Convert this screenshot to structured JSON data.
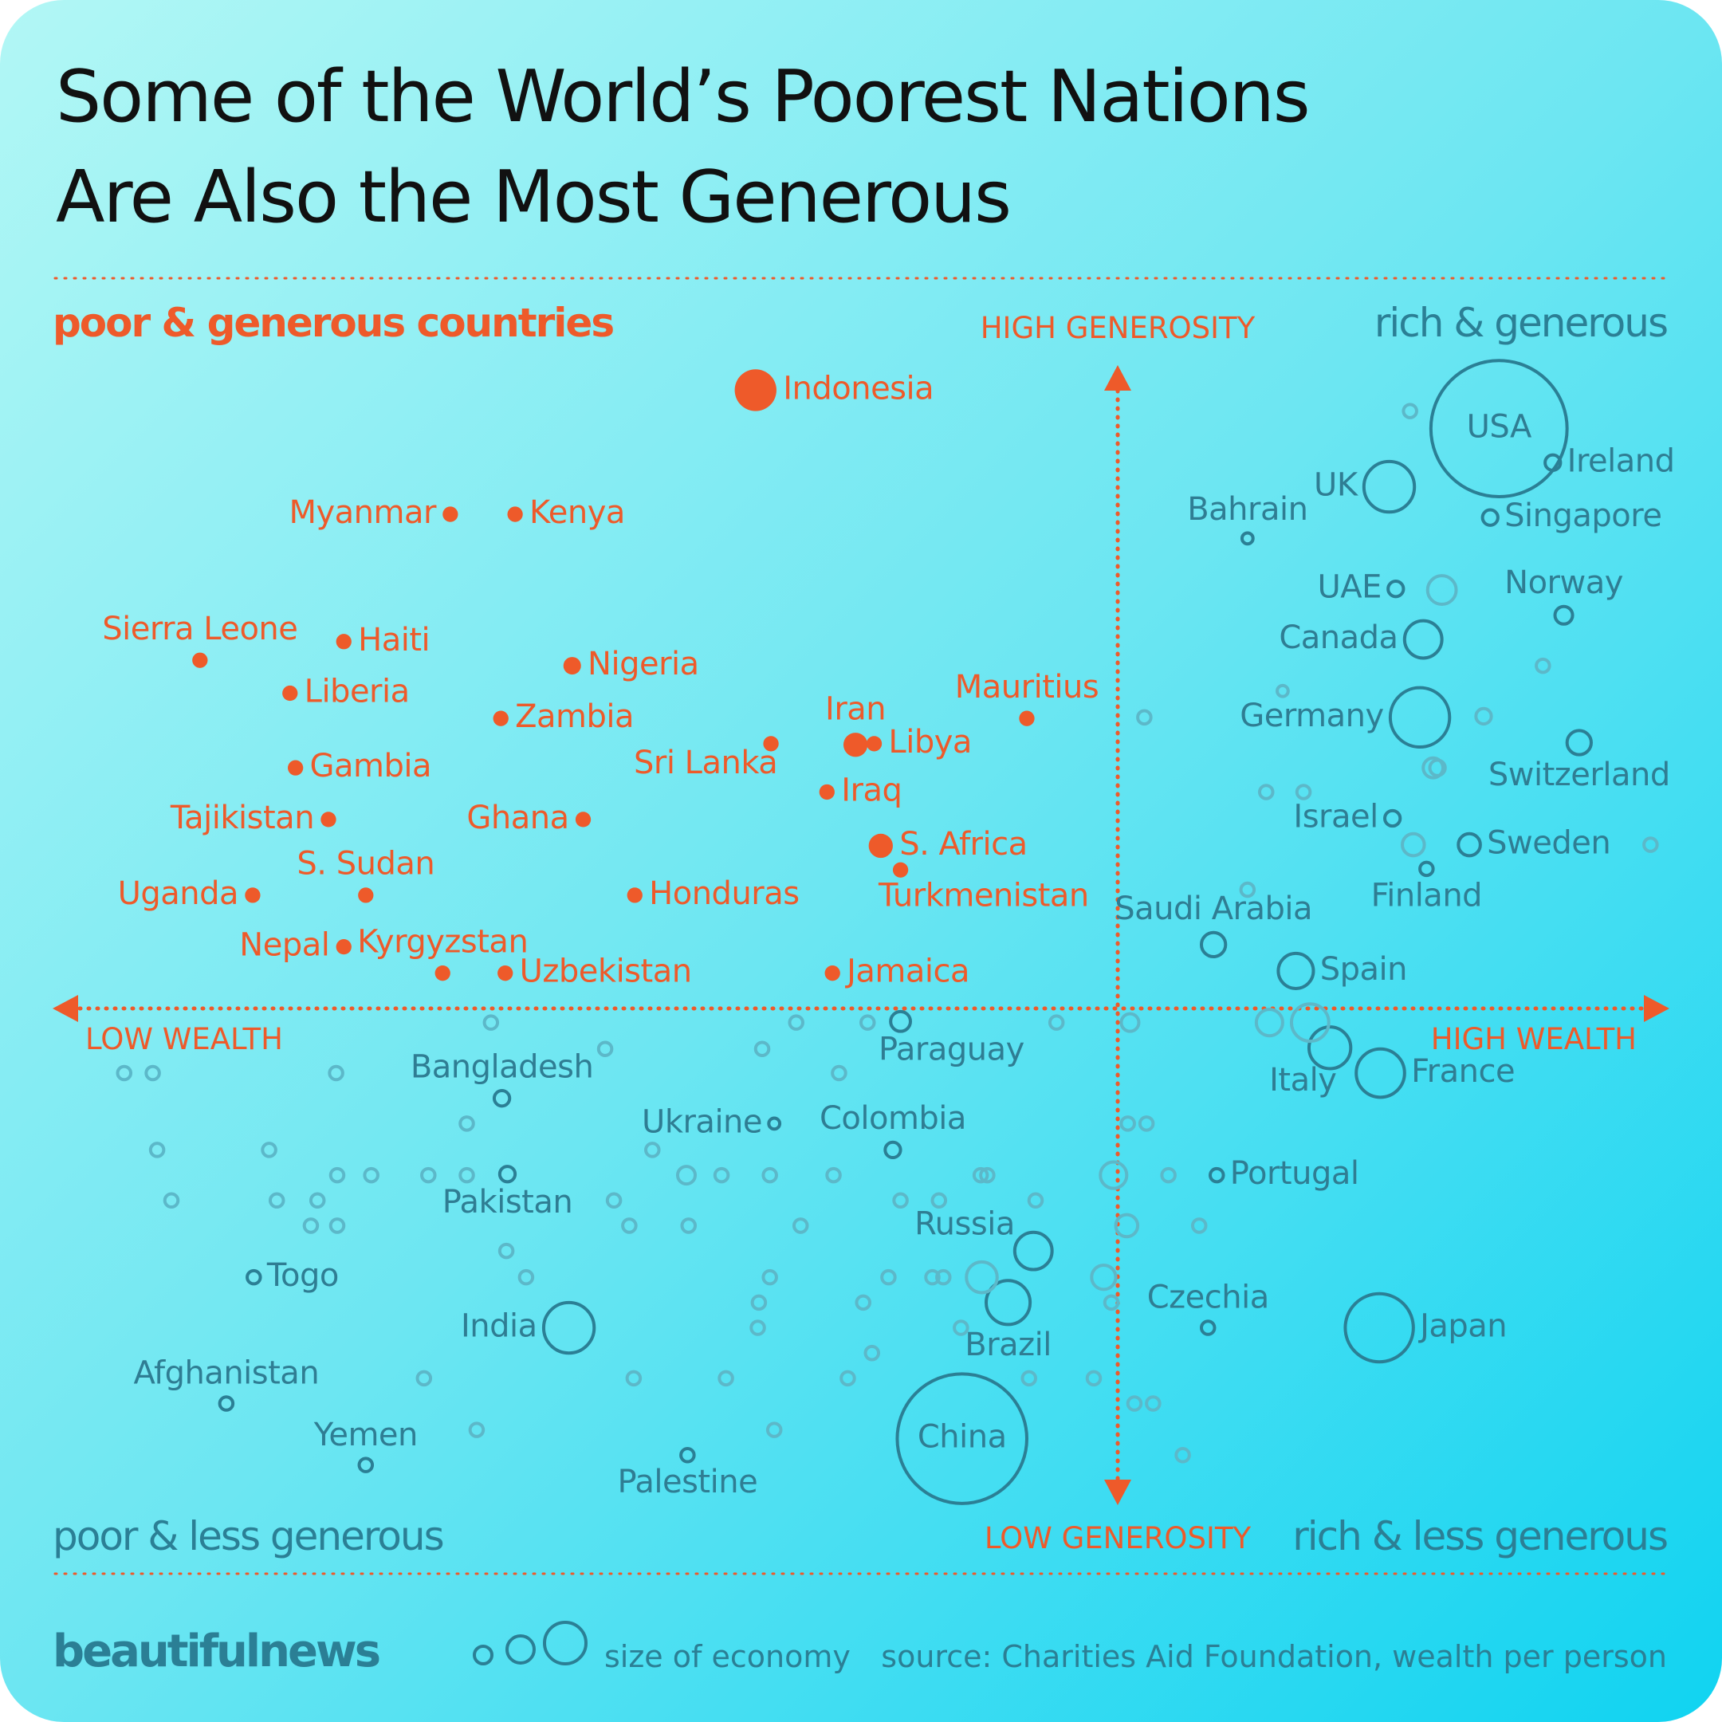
{
  "chart_data": {
    "type": "scatter",
    "title": [
      "Some of the World’s Poorest Nations",
      "Are Also the Most Generous"
    ],
    "quadrants": [
      "poor & generous countries",
      "rich & generous",
      "poor & less generous",
      "rich & less generous"
    ],
    "y_labels": [
      "HIGH GENEROSITY",
      "LOW GENEROSITY"
    ],
    "x_labels": [
      "LOW WEALTH",
      "HIGH WEALTH"
    ],
    "brand": "beautifulnews",
    "size_legend": "size of economy",
    "source": "source: Charities Aid Foundation, wealth per person",
    "xlim": [
      50,
      1518
    ],
    "ylim": [
      188,
      1238
    ],
    "series": [
      {
        "color": "#ee5a2a",
        "filled": true,
        "labels": [
          "Indonesia",
          "Myanmar",
          "Kenya",
          "Sierra Leone",
          "Haiti",
          "Liberia",
          "Nigeria",
          "Zambia",
          "Sri Lanka",
          "Iran",
          "Libya",
          "Mauritius",
          "Gambia",
          "Tajikistan",
          "Ghana",
          "Iraq",
          "S. Africa",
          "Turkmenistan",
          "Uganda",
          "S. Sudan",
          "Honduras",
          "Nepal",
          "Kyrgyzstan",
          "Uzbekistan",
          "Jamaica"
        ],
        "x": [
          688,
          410,
          469,
          182,
          313,
          264,
          521,
          456,
          702,
          779,
          796,
          935,
          269,
          299,
          531,
          753,
          802,
          820,
          230,
          333,
          578,
          313,
          403,
          460,
          758
        ],
        "y": [
          1213,
          1100,
          1100,
          967,
          984,
          937,
          962,
          914,
          891,
          890,
          891,
          914,
          869,
          822,
          822,
          847,
          798,
          776,
          753,
          753,
          753,
          706,
          682,
          682,
          682
        ],
        "size": [
          19,
          7,
          7,
          7,
          7,
          7,
          8,
          7,
          7,
          11,
          7,
          7,
          7,
          7,
          7,
          7,
          11,
          7,
          7,
          7,
          7,
          7,
          7,
          7,
          7
        ]
      },
      {
        "color": "#2b7f95",
        "filled": false,
        "labels": [
          "USA",
          "Ireland",
          "UK",
          "Singapore",
          "Bahrain",
          "UAE",
          "Norway",
          "Canada",
          "Germany",
          "Switzerland",
          "Israel",
          "Sweden",
          "Finland",
          "Saudi Arabia",
          "Spain",
          "Italy",
          "France",
          "Paraguay",
          "Bangladesh",
          "Ukraine",
          "Colombia",
          "Portugal",
          "Pakistan",
          "Russia",
          "Togo",
          "Czechia",
          "India",
          "Brazil",
          "Japan",
          "Afghanistan",
          "Yemen",
          "China",
          "Palestine"
        ],
        "x": [
          1365,
          1414,
          1265,
          1357,
          1136,
          1271,
          1424,
          1296,
          1293,
          1438,
          1268,
          1338,
          1299,
          1105,
          1180,
          1211,
          1257,
          820,
          457,
          705,
          813,
          1108,
          462,
          941,
          231,
          1100,
          518,
          918,
          1256,
          206,
          333,
          876,
          626
        ],
        "y": [
          1178,
          1147,
          1125,
          1097,
          1078,
          1032,
          1008,
          986,
          915,
          892,
          823,
          799,
          777,
          708,
          684,
          614,
          591,
          638,
          568,
          545,
          521,
          498,
          499,
          429,
          405,
          359,
          359,
          382,
          359,
          290,
          234,
          258,
          243
        ],
        "size": [
          62,
          7,
          23,
          7,
          5,
          7,
          8,
          17,
          27,
          11,
          7,
          10,
          6,
          11,
          16,
          19,
          22,
          9,
          7,
          5,
          7,
          6,
          7,
          17,
          6,
          6,
          23,
          20,
          31,
          6,
          6,
          59,
          6
        ]
      },
      {
        "color": "#5cb8c9",
        "filled": false,
        "x": [
          1284,
          1313,
          1168,
          1405,
          1042,
          1351,
          1305,
          1309,
          1153,
          1187,
          1287,
          1503,
          1136,
          1156,
          1193,
          1029,
          962,
          790,
          725,
          447,
          551,
          694,
          764,
          113,
          139,
          306,
          425,
          1027,
          1044,
          143,
          245,
          594,
          307,
          338,
          390,
          425,
          625,
          657,
          701,
          759,
          893,
          899,
          1014,
          1064,
          156,
          252,
          289,
          559,
          820,
          855,
          943,
          283,
          307,
          573,
          627,
          729,
          1026,
          1092,
          461,
          479,
          701,
          809,
          849,
          859,
          894,
          1005,
          691,
          786,
          1012,
          690,
          875,
          794,
          386,
          577,
          661,
          772,
          937,
          996,
          1033,
          1050,
          434,
          705,
          1077
        ],
        "y": [
          1194,
          1031,
          939,
          962,
          915,
          916,
          869,
          869,
          847,
          847,
          799,
          799,
          758,
          637,
          637,
          637,
          637,
          637,
          637,
          637,
          613,
          613,
          591,
          591,
          591,
          591,
          545,
          545,
          545,
          521,
          521,
          521,
          498,
          498,
          498,
          498,
          498,
          498,
          498,
          498,
          498,
          498,
          498,
          498,
          475,
          475,
          475,
          475,
          475,
          475,
          475,
          452,
          452,
          452,
          452,
          452,
          452,
          452,
          429,
          405,
          405,
          405,
          405,
          405,
          405,
          405,
          382,
          382,
          382,
          359,
          359,
          336,
          313,
          313,
          313,
          313,
          313,
          313,
          290,
          290,
          266,
          266,
          243
        ],
        "size": [
          6,
          13,
          5,
          6,
          6,
          7,
          9,
          7,
          6,
          6,
          10,
          6,
          6,
          12,
          17,
          8,
          6,
          6,
          6,
          6,
          6,
          6,
          6,
          6,
          6,
          6,
          6,
          6,
          6,
          6,
          6,
          6,
          6,
          6,
          6,
          6,
          8,
          6,
          6,
          6,
          6,
          6,
          12,
          6,
          6,
          6,
          6,
          6,
          6,
          6,
          6,
          6,
          6,
          6,
          6,
          6,
          10,
          6,
          6,
          6,
          6,
          6,
          6,
          6,
          14,
          11,
          6,
          6,
          6,
          6,
          6,
          6,
          6,
          6,
          6,
          6,
          6,
          6,
          6,
          6,
          6,
          6,
          6
        ]
      }
    ]
  }
}
